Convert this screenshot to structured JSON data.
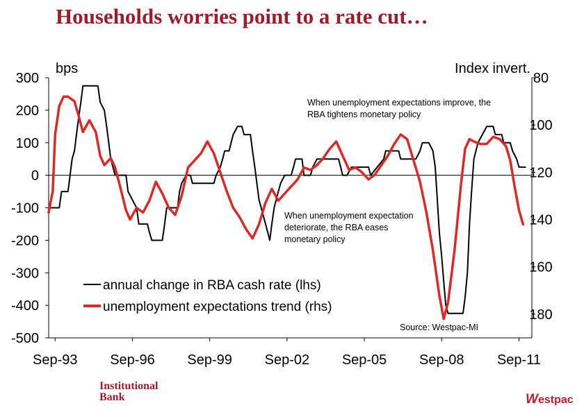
{
  "title": "Households worries point to a rate cut…",
  "footer": {
    "left_line1": "Institutional",
    "left_line2": "Bank",
    "right_mark": "W",
    "right_text": "estpac"
  },
  "chart_data": {
    "type": "line",
    "title": "Households worries point to a rate cut…",
    "ylabel": "bps",
    "ylabel_right": "Index invert.",
    "ylim": [
      -500,
      300
    ],
    "ylim_right": [
      80,
      190
    ],
    "y_right_inverted": true,
    "yticks": [
      "300",
      "200",
      "100",
      "0",
      "-100",
      "-200",
      "-300",
      "-400",
      "-500"
    ],
    "yticks_right": [
      "80",
      "100",
      "120",
      "140",
      "160",
      "180"
    ],
    "xlim": [
      1993.42,
      2012.17
    ],
    "xticks": [
      {
        "x": 1993.67,
        "label": "Sep-93"
      },
      {
        "x": 1996.67,
        "label": "Sep-96"
      },
      {
        "x": 1999.67,
        "label": "Sep-99"
      },
      {
        "x": 2002.67,
        "label": "Sep-02"
      },
      {
        "x": 2005.67,
        "label": "Sep-05"
      },
      {
        "x": 2008.67,
        "label": "Sep-08"
      },
      {
        "x": 2011.67,
        "label": "Sep-11"
      }
    ],
    "grid": false,
    "legend_position": "bottom-left",
    "source": "Source: Westpac-MI",
    "annotations": [
      {
        "lines": [
          "When unemployment expectations improve, the",
          "RBA tightens monetary policy"
        ]
      },
      {
        "lines": [
          "When unemployment expectation",
          "deteriorate, the RBA eases",
          "monetary policy"
        ]
      }
    ],
    "series": [
      {
        "name": "annual change in RBA cash rate (lhs)",
        "color": "#000000",
        "axis": "left",
        "points": [
          [
            1993.42,
            -100
          ],
          [
            1993.83,
            -100
          ],
          [
            1993.92,
            -50
          ],
          [
            1994.17,
            -50
          ],
          [
            1994.25,
            0
          ],
          [
            1994.33,
            50
          ],
          [
            1994.42,
            75
          ],
          [
            1994.5,
            125
          ],
          [
            1994.58,
            175
          ],
          [
            1994.67,
            225
          ],
          [
            1994.75,
            275
          ],
          [
            1995.33,
            275
          ],
          [
            1995.42,
            225
          ],
          [
            1995.58,
            200
          ],
          [
            1995.67,
            150
          ],
          [
            1995.75,
            100
          ],
          [
            1995.83,
            50
          ],
          [
            1996.0,
            0
          ],
          [
            1996.42,
            0
          ],
          [
            1996.5,
            -50
          ],
          [
            1996.83,
            -100
          ],
          [
            1996.92,
            -150
          ],
          [
            1997.25,
            -150
          ],
          [
            1997.33,
            -175
          ],
          [
            1997.42,
            -200
          ],
          [
            1997.83,
            -200
          ],
          [
            1997.92,
            -150
          ],
          [
            1998.0,
            -100
          ],
          [
            1998.42,
            -100
          ],
          [
            1998.5,
            -50
          ],
          [
            1998.58,
            -25
          ],
          [
            1998.75,
            0
          ],
          [
            1998.92,
            0
          ],
          [
            1999.0,
            -25
          ],
          [
            1999.83,
            -25
          ],
          [
            1999.92,
            0
          ],
          [
            2000.08,
            25
          ],
          [
            2000.17,
            50
          ],
          [
            2000.25,
            75
          ],
          [
            2000.42,
            75
          ],
          [
            2000.5,
            100
          ],
          [
            2000.58,
            125
          ],
          [
            2000.75,
            150
          ],
          [
            2000.92,
            150
          ],
          [
            2001.0,
            125
          ],
          [
            2001.25,
            125
          ],
          [
            2001.33,
            75
          ],
          [
            2001.42,
            25
          ],
          [
            2001.5,
            -25
          ],
          [
            2001.58,
            -75
          ],
          [
            2001.75,
            -125
          ],
          [
            2001.92,
            -175
          ],
          [
            2002.0,
            -200
          ],
          [
            2002.08,
            -150
          ],
          [
            2002.17,
            -100
          ],
          [
            2002.33,
            -50
          ],
          [
            2002.42,
            -25
          ],
          [
            2002.58,
            0
          ],
          [
            2002.83,
            0
          ],
          [
            2002.92,
            25
          ],
          [
            2003.0,
            50
          ],
          [
            2003.25,
            50
          ],
          [
            2003.33,
            0
          ],
          [
            2003.58,
            0
          ],
          [
            2003.67,
            25
          ],
          [
            2003.83,
            50
          ],
          [
            2004.67,
            50
          ],
          [
            2004.75,
            25
          ],
          [
            2004.83,
            0
          ],
          [
            2005.0,
            0
          ],
          [
            2005.17,
            25
          ],
          [
            2005.83,
            25
          ],
          [
            2005.92,
            0
          ],
          [
            2006.17,
            25
          ],
          [
            2006.42,
            50
          ],
          [
            2006.5,
            75
          ],
          [
            2007.0,
            75
          ],
          [
            2007.08,
            50
          ],
          [
            2007.67,
            50
          ],
          [
            2007.83,
            75
          ],
          [
            2007.92,
            100
          ],
          [
            2008.17,
            100
          ],
          [
            2008.33,
            75
          ],
          [
            2008.42,
            25
          ],
          [
            2008.5,
            -75
          ],
          [
            2008.58,
            -175
          ],
          [
            2008.67,
            -250
          ],
          [
            2008.75,
            -325
          ],
          [
            2008.83,
            -400
          ],
          [
            2008.92,
            -425
          ],
          [
            2009.5,
            -425
          ],
          [
            2009.58,
            -375
          ],
          [
            2009.67,
            -300
          ],
          [
            2009.75,
            -150
          ],
          [
            2009.83,
            -50
          ],
          [
            2009.92,
            50
          ],
          [
            2010.08,
            100
          ],
          [
            2010.25,
            125
          ],
          [
            2010.42,
            150
          ],
          [
            2010.67,
            150
          ],
          [
            2010.75,
            125
          ],
          [
            2011.0,
            125
          ],
          [
            2011.08,
            100
          ],
          [
            2011.33,
            100
          ],
          [
            2011.42,
            75
          ],
          [
            2011.58,
            50
          ],
          [
            2011.67,
            25
          ],
          [
            2011.92,
            25
          ]
        ]
      },
      {
        "name": "unemployment expectations trend (rhs)",
        "color": "#d92a27",
        "axis": "right",
        "points": [
          [
            1993.42,
            137
          ],
          [
            1993.58,
            128
          ],
          [
            1993.67,
            104
          ],
          [
            1993.83,
            92
          ],
          [
            1994.0,
            88
          ],
          [
            1994.17,
            88
          ],
          [
            1994.42,
            90
          ],
          [
            1994.58,
            96
          ],
          [
            1994.75,
            103
          ],
          [
            1995.0,
            98
          ],
          [
            1995.25,
            103
          ],
          [
            1995.42,
            113
          ],
          [
            1995.58,
            117
          ],
          [
            1995.83,
            114
          ],
          [
            1996.0,
            118
          ],
          [
            1996.17,
            125
          ],
          [
            1996.42,
            136
          ],
          [
            1996.58,
            140
          ],
          [
            1996.83,
            135
          ],
          [
            1997.08,
            137
          ],
          [
            1997.33,
            132
          ],
          [
            1997.58,
            124
          ],
          [
            1997.83,
            129
          ],
          [
            1998.08,
            135
          ],
          [
            1998.33,
            138
          ],
          [
            1998.58,
            130
          ],
          [
            1998.83,
            118
          ],
          [
            1999.08,
            115
          ],
          [
            1999.33,
            112
          ],
          [
            1999.58,
            107
          ],
          [
            1999.83,
            112
          ],
          [
            2000.08,
            120
          ],
          [
            2000.33,
            128
          ],
          [
            2000.58,
            135
          ],
          [
            2000.83,
            139
          ],
          [
            2001.08,
            144
          ],
          [
            2001.33,
            148
          ],
          [
            2001.58,
            142
          ],
          [
            2001.83,
            133
          ],
          [
            2002.08,
            127
          ],
          [
            2002.33,
            132
          ],
          [
            2002.58,
            129
          ],
          [
            2002.83,
            126
          ],
          [
            2003.08,
            123
          ],
          [
            2003.33,
            118
          ],
          [
            2003.58,
            119
          ],
          [
            2003.83,
            117
          ],
          [
            2004.08,
            114
          ],
          [
            2004.33,
            110
          ],
          [
            2004.58,
            107
          ],
          [
            2004.83,
            113
          ],
          [
            2005.08,
            119
          ],
          [
            2005.33,
            118
          ],
          [
            2005.58,
            120
          ],
          [
            2005.83,
            123
          ],
          [
            2006.08,
            121
          ],
          [
            2006.33,
            117
          ],
          [
            2006.58,
            113
          ],
          [
            2006.83,
            108
          ],
          [
            2007.08,
            104
          ],
          [
            2007.33,
            106
          ],
          [
            2007.58,
            115
          ],
          [
            2007.83,
            124
          ],
          [
            2008.08,
            137
          ],
          [
            2008.33,
            153
          ],
          [
            2008.58,
            172
          ],
          [
            2008.75,
            182
          ],
          [
            2008.92,
            175
          ],
          [
            2009.17,
            153
          ],
          [
            2009.42,
            125
          ],
          [
            2009.58,
            110
          ],
          [
            2009.75,
            106
          ],
          [
            2009.92,
            107
          ],
          [
            2010.17,
            108
          ],
          [
            2010.42,
            108
          ],
          [
            2010.67,
            105
          ],
          [
            2010.92,
            106
          ],
          [
            2011.17,
            109
          ],
          [
            2011.33,
            115
          ],
          [
            2011.5,
            126
          ],
          [
            2011.67,
            136
          ],
          [
            2011.83,
            142
          ]
        ]
      }
    ]
  }
}
